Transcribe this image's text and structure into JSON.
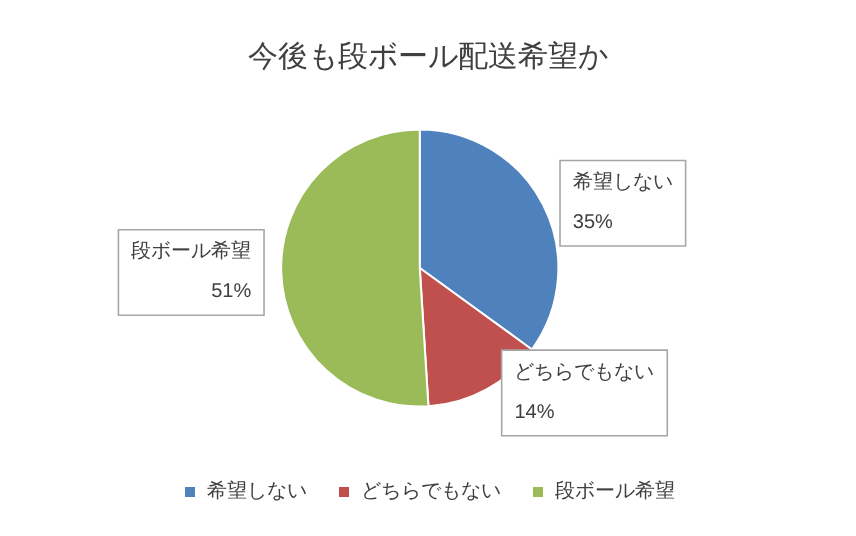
{
  "chart_data": {
    "type": "pie",
    "title": "今後も段ボール配送希望か",
    "categories": [
      "希望しない",
      "どちらでもない",
      "段ボール希望"
    ],
    "values": [
      35,
      14,
      51
    ],
    "value_labels": [
      "35%",
      "14%",
      "51%"
    ],
    "colors": [
      "#4f81bd",
      "#c0504d",
      "#9bbb59"
    ],
    "legend": "bottom"
  }
}
